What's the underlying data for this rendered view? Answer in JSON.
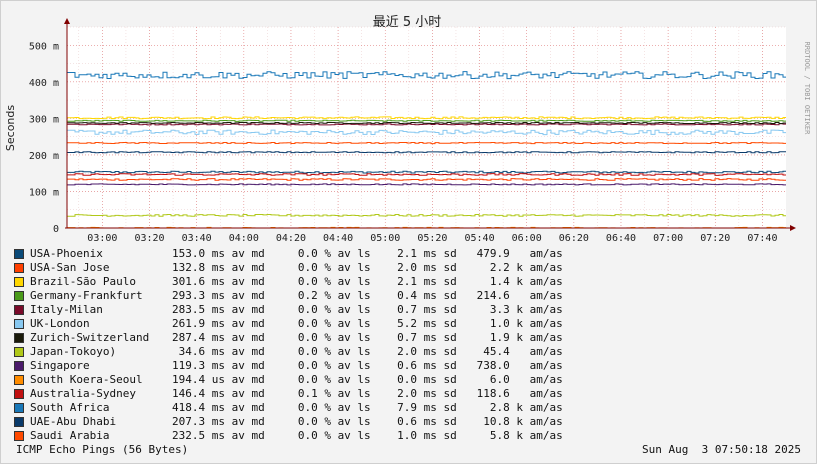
{
  "chart_data": {
    "type": "line",
    "title": "最近 5 小时",
    "ylabel": "Seconds",
    "ylim": [
      0,
      0.55
    ],
    "y_ticks": [
      {
        "value": 0,
        "label": "0"
      },
      {
        "value": 0.1,
        "label": "100 m"
      },
      {
        "value": 0.2,
        "label": "200 m"
      },
      {
        "value": 0.3,
        "label": "300 m"
      },
      {
        "value": 0.4,
        "label": "400 m"
      },
      {
        "value": 0.5,
        "label": "500 m"
      }
    ],
    "x_range": [
      "02:45",
      "07:50"
    ],
    "x_ticks": [
      "03:00",
      "03:20",
      "03:40",
      "04:00",
      "04:20",
      "04:40",
      "05:00",
      "05:20",
      "05:40",
      "06:00",
      "06:20",
      "06:40",
      "07:00",
      "07:20",
      "07:40"
    ],
    "grid": true,
    "legend_position": "bottom",
    "series": [
      {
        "name": "USA-Phoenix",
        "color": "#0a4a78",
        "median": 0.153,
        "stats": "153.0 ms av md     0.0 % av ls    2.1 ms sd   479.9   am/as"
      },
      {
        "name": "USA-San Jose",
        "color": "#ff4000",
        "median": 0.1328,
        "stats": "132.8 ms av md     0.0 % av ls    2.0 ms sd     2.2 k am/as"
      },
      {
        "name": "Brazil-São Paulo",
        "color": "#ffd700",
        "median": 0.3016,
        "stats": "301.6 ms av md     0.0 % av ls    2.1 ms sd     1.4 k am/as"
      },
      {
        "name": "Germany-Frankfurt",
        "color": "#4a9a1a",
        "median": 0.2933,
        "stats": "293.3 ms av md     0.2 % av ls    0.4 ms sd   214.6   am/as"
      },
      {
        "name": "Italy-Milan",
        "color": "#7a0a2a",
        "median": 0.2835,
        "stats": "283.5 ms av md     0.0 % av ls    0.7 ms sd     3.3 k am/as"
      },
      {
        "name": "UK-London",
        "color": "#88c8f0",
        "median": 0.2619,
        "stats": "261.9 ms av md     0.0 % av ls    5.2 ms sd     1.0 k am/as"
      },
      {
        "name": "Zurich-Switzerland",
        "color": "#1a1a0a",
        "median": 0.2874,
        "stats": "287.4 ms av md     0.0 % av ls    0.7 ms sd     1.9 k am/as"
      },
      {
        "name": "Japan-Tokoyo)",
        "color": "#b0c818",
        "median": 0.0346,
        "stats": " 34.6 ms av md     0.0 % av ls    2.0 ms sd    45.4   am/as"
      },
      {
        "name": "Singapore",
        "color": "#4a1a6a",
        "median": 0.1193,
        "stats": "119.3 ms av md     0.0 % av ls    0.6 ms sd   738.0   am/as"
      },
      {
        "name": "South Koera-Seoul",
        "color": "#ff8c00",
        "median": 0.0001944,
        "stats": "194.4 us av md     0.0 % av ls    0.0 ms sd     6.0   am/as"
      },
      {
        "name": "Australia-Sydney",
        "color": "#c01010",
        "median": 0.1464,
        "stats": "146.4 ms av md     0.1 % av ls    2.0 ms sd   118.6   am/as"
      },
      {
        "name": "South Africa",
        "color": "#1a78b8",
        "median": 0.4184,
        "stats": "418.4 ms av md     0.0 % av ls    7.9 ms sd     2.8 k am/as"
      },
      {
        "name": "UAE-Abu Dhabi",
        "color": "#0a3a6a",
        "median": 0.2073,
        "stats": "207.3 ms av md     0.0 % av ls    0.6 ms sd    10.8 k am/as"
      },
      {
        "name": "Saudi Arabia",
        "color": "#ff4a00",
        "median": 0.2325,
        "stats": "232.5 ms av md     0.0 % av ls    1.0 ms sd     5.8 k am/as"
      }
    ],
    "watermark": "RRDTOOL / TOBI OETIKER"
  },
  "footer": {
    "left": "ICMP Echo Pings (56 Bytes)",
    "right": "Sun Aug  3 07:50:18 2025"
  }
}
